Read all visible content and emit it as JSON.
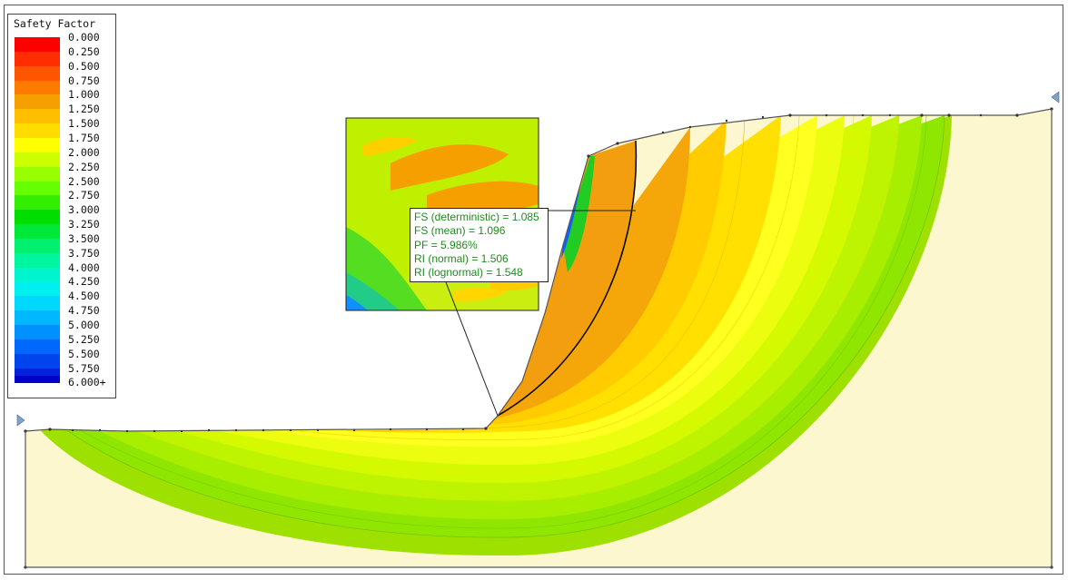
{
  "legend": {
    "title": "Safety Factor",
    "levels": [
      {
        "label": "0.000",
        "color": "#ff0000"
      },
      {
        "label": "0.250",
        "color": "#ff2d00"
      },
      {
        "label": "0.500",
        "color": "#ff5500"
      },
      {
        "label": "0.750",
        "color": "#ff7b00"
      },
      {
        "label": "1.000",
        "color": "#f5a000"
      },
      {
        "label": "1.250",
        "color": "#ffbe00"
      },
      {
        "label": "1.500",
        "color": "#ffdc00"
      },
      {
        "label": "1.750",
        "color": "#ffff00"
      },
      {
        "label": "2.000",
        "color": "#ccff00"
      },
      {
        "label": "2.250",
        "color": "#99ff00"
      },
      {
        "label": "2.500",
        "color": "#66ff00"
      },
      {
        "label": "2.750",
        "color": "#33ee00"
      },
      {
        "label": "3.000",
        "color": "#00dd00"
      },
      {
        "label": "3.250",
        "color": "#00e83a"
      },
      {
        "label": "3.500",
        "color": "#00f070"
      },
      {
        "label": "3.750",
        "color": "#00f5a0"
      },
      {
        "label": "4.000",
        "color": "#00f5cc"
      },
      {
        "label": "4.250",
        "color": "#00f0f0"
      },
      {
        "label": "4.500",
        "color": "#00d8ff"
      },
      {
        "label": "4.750",
        "color": "#00b8ff"
      },
      {
        "label": "5.000",
        "color": "#0090ff"
      },
      {
        "label": "5.250",
        "color": "#0068ff"
      },
      {
        "label": "5.500",
        "color": "#0044ee"
      },
      {
        "label": "5.750",
        "color": "#0022dd"
      },
      {
        "label": "6.000+",
        "color": "#0000cc"
      }
    ]
  },
  "results": {
    "fs_deterministic": "FS (deterministic) = 1.085",
    "fs_mean": "FS (mean) = 1.096",
    "pf": "PF = 5.986%",
    "ri_normal": "RI (normal) = 1.506",
    "ri_lognormal": "RI (lognormal) = 1.548"
  },
  "colors": {
    "soil": "#fdf7cf",
    "critical_surface": "#000000",
    "boundary": "#555555",
    "text_green": "#1f8a1f"
  }
}
